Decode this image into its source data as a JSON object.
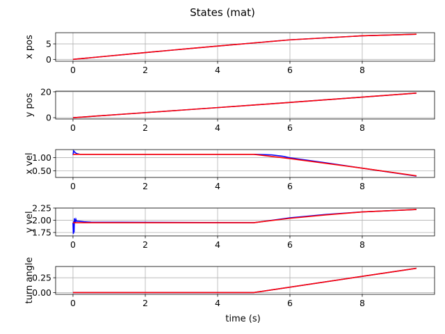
{
  "figure": {
    "title": "States (mat)"
  },
  "chart_data": [
    {
      "type": "line",
      "ylabel": "x pos",
      "xlabel": "",
      "xlim": [
        -0.48,
        10.0
      ],
      "ylim": [
        -0.6,
        8.6
      ],
      "xticks": [
        0,
        2,
        4,
        6,
        8
      ],
      "yticks": [
        0,
        5
      ],
      "grid": true,
      "series": [
        {
          "color": "#0000ff",
          "x": [
            0,
            2,
            4,
            6,
            8,
            9.5
          ],
          "y": [
            0,
            2.2,
            4.3,
            6.3,
            7.6,
            8.1
          ]
        },
        {
          "color": "#ff0000",
          "x": [
            0,
            2,
            4,
            6,
            8,
            9.5
          ],
          "y": [
            0,
            2.2,
            4.3,
            6.3,
            7.6,
            8.1
          ]
        }
      ]
    },
    {
      "type": "line",
      "ylabel": "y pos",
      "xlabel": "",
      "xlim": [
        -0.48,
        10.0
      ],
      "ylim": [
        -1.0,
        20.5
      ],
      "xticks": [
        0,
        2,
        4,
        6,
        8
      ],
      "yticks": [
        0,
        20
      ],
      "grid": true,
      "series": [
        {
          "color": "#0000ff",
          "x": [
            0,
            2,
            4,
            5,
            6,
            8,
            9.5
          ],
          "y": [
            0,
            3.9,
            7.8,
            9.8,
            11.8,
            15.9,
            19.0
          ]
        },
        {
          "color": "#ff0000",
          "x": [
            0,
            2,
            4,
            5,
            6,
            8,
            9.5
          ],
          "y": [
            0,
            3.9,
            7.8,
            9.8,
            11.8,
            15.9,
            19.0
          ]
        }
      ]
    },
    {
      "type": "line",
      "ylabel": "x vel",
      "xlabel": "",
      "xlim": [
        -0.48,
        10.0
      ],
      "ylim": [
        0.25,
        1.3
      ],
      "xticks": [
        0,
        2,
        4,
        6,
        8
      ],
      "yticks": [
        0.5,
        1.0
      ],
      "grid": true,
      "series": [
        {
          "color": "#0000ff",
          "x": [
            0,
            0.02,
            0.05,
            0.1,
            0.2,
            0.4,
            5.0,
            5.5,
            5.8,
            6.0,
            7.0,
            8.0,
            9.5
          ],
          "y": [
            1.1,
            1.25,
            1.2,
            1.15,
            1.12,
            1.12,
            1.12,
            1.1,
            1.05,
            0.99,
            0.8,
            0.6,
            0.3
          ]
        },
        {
          "color": "#ff0000",
          "x": [
            0,
            5.0,
            6.0,
            7.0,
            8.0,
            9.5
          ],
          "y": [
            1.12,
            1.12,
            0.96,
            0.78,
            0.6,
            0.31
          ]
        }
      ]
    },
    {
      "type": "line",
      "ylabel": "y vel",
      "xlabel": "",
      "xlim": [
        -0.48,
        10.0
      ],
      "ylim": [
        1.68,
        2.25
      ],
      "xticks": [
        0,
        2,
        4,
        6,
        8
      ],
      "yticks": [
        1.75,
        2.0,
        2.25
      ],
      "grid": true,
      "series": [
        {
          "color": "#0000ff",
          "x": [
            0,
            0.01,
            0.02,
            0.03,
            0.04,
            0.06,
            0.08,
            0.1,
            0.15,
            0.3,
            0.5,
            5.0,
            6.0,
            7.0,
            8.0,
            9.5
          ],
          "y": [
            1.95,
            1.72,
            1.98,
            1.75,
            2.04,
            1.95,
            2.02,
            1.98,
            1.98,
            1.97,
            1.96,
            1.95,
            2.05,
            2.12,
            2.17,
            2.22
          ]
        },
        {
          "color": "#ff0000",
          "x": [
            0,
            0.5,
            5.0,
            6.0,
            7.0,
            8.0,
            9.5
          ],
          "y": [
            1.95,
            1.95,
            1.95,
            2.04,
            2.11,
            2.17,
            2.22
          ]
        }
      ]
    },
    {
      "type": "line",
      "ylabel": "turn angle",
      "xlabel": "time (s)",
      "xlim": [
        -0.48,
        10.0
      ],
      "ylim": [
        -0.03,
        0.44
      ],
      "xticks": [
        0,
        2,
        4,
        6,
        8
      ],
      "yticks": [
        0.0,
        0.25
      ],
      "grid": true,
      "series": [
        {
          "color": "#0000ff",
          "x": [
            0,
            5.0,
            9.5
          ],
          "y": [
            0.0,
            0.0,
            0.41
          ]
        },
        {
          "color": "#ff0000",
          "x": [
            0,
            5.0,
            9.5
          ],
          "y": [
            0.0,
            0.0,
            0.41
          ]
        }
      ]
    }
  ]
}
